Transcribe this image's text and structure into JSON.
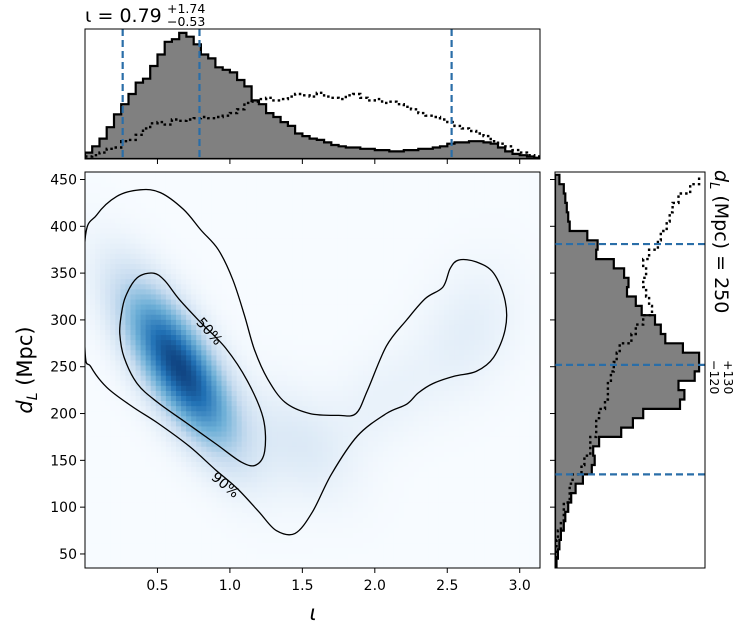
{
  "chart_data": {
    "type": "corner",
    "main": {
      "type": "heatmap",
      "xlabel": "ι",
      "ylabel": "d_L (Mpc)",
      "xlim": [
        0.0,
        3.14
      ],
      "ylim": [
        35,
        458
      ],
      "xticks": [
        0.5,
        1.0,
        1.5,
        2.0,
        2.5,
        3.0
      ],
      "xtick_labels": [
        "0.5",
        "1.0",
        "1.5",
        "2.0",
        "2.5",
        "3.0"
      ],
      "yticks": [
        50,
        100,
        150,
        200,
        250,
        300,
        350,
        400,
        450
      ],
      "ytick_labels": [
        "50",
        "100",
        "150",
        "200",
        "250",
        "300",
        "350",
        "400",
        "450"
      ],
      "colormap": "Blues",
      "density_blobs": [
        {
          "x": 0.65,
          "y": 250,
          "sx": 0.25,
          "sy": 55,
          "rho": -0.72,
          "w": 1.0
        },
        {
          "x": 1.45,
          "y": 170,
          "sx": 0.25,
          "sy": 40,
          "rho": -0.4,
          "w": 0.1
        },
        {
          "x": 2.65,
          "y": 290,
          "sx": 0.22,
          "sy": 45,
          "rho": 0.25,
          "w": 0.07
        },
        {
          "x": 2.05,
          "y": 215,
          "sx": 0.3,
          "sy": 40,
          "rho": 0.5,
          "w": 0.05
        }
      ],
      "contours": [
        {
          "label": "50%",
          "points": [
            [
              0.25,
              305
            ],
            [
              0.28,
              325
            ],
            [
              0.36,
              345
            ],
            [
              0.47,
              350
            ],
            [
              0.55,
              342
            ],
            [
              0.65,
              322
            ],
            [
              0.8,
              297
            ],
            [
              0.97,
              270
            ],
            [
              1.12,
              235
            ],
            [
              1.23,
              195
            ],
            [
              1.24,
              160
            ],
            [
              1.18,
              145
            ],
            [
              1.08,
              148
            ],
            [
              0.9,
              168
            ],
            [
              0.7,
              190
            ],
            [
              0.5,
              212
            ],
            [
              0.36,
              232
            ],
            [
              0.27,
              260
            ],
            [
              0.24,
              285
            ]
          ]
        },
        {
          "label": "90%",
          "points": [
            [
              0.0,
              385
            ],
            [
              0.08,
              412
            ],
            [
              0.22,
              432
            ],
            [
              0.38,
              439
            ],
            [
              0.52,
              436
            ],
            [
              0.68,
              418
            ],
            [
              0.8,
              396
            ],
            [
              0.92,
              375
            ],
            [
              1.02,
              343
            ],
            [
              1.1,
              305
            ],
            [
              1.17,
              268
            ],
            [
              1.26,
              237
            ],
            [
              1.38,
              212
            ],
            [
              1.55,
              200
            ],
            [
              1.75,
              198
            ],
            [
              1.87,
              200
            ],
            [
              1.95,
              225
            ],
            [
              2.08,
              272
            ],
            [
              2.22,
              300
            ],
            [
              2.35,
              323
            ],
            [
              2.47,
              335
            ],
            [
              2.52,
              355
            ],
            [
              2.58,
              364
            ],
            [
              2.7,
              362
            ],
            [
              2.82,
              350
            ],
            [
              2.9,
              320
            ],
            [
              2.9,
              290
            ],
            [
              2.82,
              260
            ],
            [
              2.7,
              245
            ],
            [
              2.55,
              240
            ],
            [
              2.4,
              232
            ],
            [
              2.3,
              222
            ],
            [
              2.22,
              210
            ],
            [
              2.08,
              200
            ],
            [
              1.88,
              176
            ],
            [
              1.7,
              135
            ],
            [
              1.57,
              95
            ],
            [
              1.45,
              72
            ],
            [
              1.32,
              75
            ],
            [
              1.2,
              95
            ],
            [
              1.05,
              120
            ],
            [
              0.9,
              140
            ],
            [
              0.72,
              165
            ],
            [
              0.5,
              190
            ],
            [
              0.32,
              208
            ],
            [
              0.15,
              228
            ],
            [
              0.04,
              250
            ],
            [
              0.0,
              268
            ]
          ]
        }
      ]
    },
    "top": {
      "type": "histogram",
      "title_prefix": "ι = ",
      "title_value": "0.79",
      "title_plus": "+1.74",
      "title_minus": "−0.53",
      "bin_start": 0.0,
      "bin_width": 0.05,
      "posterior_heights": [
        0.05,
        0.1,
        0.16,
        0.25,
        0.35,
        0.43,
        0.51,
        0.6,
        0.63,
        0.73,
        0.82,
        0.92,
        0.94,
        0.99,
        0.96,
        0.9,
        0.82,
        0.79,
        0.72,
        0.7,
        0.68,
        0.62,
        0.57,
        0.46,
        0.43,
        0.36,
        0.33,
        0.29,
        0.26,
        0.2,
        0.18,
        0.16,
        0.15,
        0.13,
        0.11,
        0.1,
        0.09,
        0.09,
        0.08,
        0.08,
        0.07,
        0.07,
        0.06,
        0.06,
        0.07,
        0.07,
        0.08,
        0.08,
        0.09,
        0.1,
        0.12,
        0.13,
        0.13,
        0.14,
        0.14,
        0.13,
        0.12,
        0.09,
        0.06,
        0.04,
        0.03,
        0.02,
        0.01
      ],
      "prior_heights": [
        0.02,
        0.03,
        0.05,
        0.08,
        0.09,
        0.14,
        0.15,
        0.19,
        0.24,
        0.28,
        0.29,
        0.27,
        0.31,
        0.3,
        0.31,
        0.32,
        0.33,
        0.32,
        0.33,
        0.34,
        0.36,
        0.39,
        0.44,
        0.45,
        0.47,
        0.48,
        0.46,
        0.47,
        0.49,
        0.51,
        0.5,
        0.49,
        0.52,
        0.49,
        0.48,
        0.47,
        0.5,
        0.51,
        0.48,
        0.46,
        0.47,
        0.44,
        0.45,
        0.43,
        0.41,
        0.39,
        0.36,
        0.34,
        0.33,
        0.31,
        0.29,
        0.26,
        0.24,
        0.22,
        0.2,
        0.18,
        0.14,
        0.12,
        0.1,
        0.07,
        0.05,
        0.03,
        0.02
      ],
      "lines": [
        0.26,
        0.79,
        2.53
      ]
    },
    "right": {
      "type": "histogram",
      "orientation": "horizontal",
      "label_prefix": "d",
      "label_sub": "L",
      "label_body": " (Mpc) = 250",
      "label_plus": "+130",
      "label_minus": "−120",
      "bin_start": 35,
      "bin_width": 10,
      "posterior_widths": [
        0.01,
        0.02,
        0.03,
        0.04,
        0.06,
        0.07,
        0.09,
        0.11,
        0.14,
        0.19,
        0.25,
        0.27,
        0.26,
        0.3,
        0.45,
        0.53,
        0.6,
        0.85,
        0.88,
        0.84,
        0.95,
        0.98,
        0.98,
        0.87,
        0.75,
        0.72,
        0.68,
        0.59,
        0.55,
        0.49,
        0.5,
        0.47,
        0.4,
        0.28,
        0.29,
        0.22,
        0.1,
        0.09,
        0.08,
        0.07,
        0.06,
        0.03
      ],
      "prior_widths": [
        0.0,
        0.01,
        0.01,
        0.02,
        0.04,
        0.06,
        0.06,
        0.1,
        0.1,
        0.12,
        0.18,
        0.2,
        0.24,
        0.24,
        0.28,
        0.28,
        0.3,
        0.34,
        0.36,
        0.36,
        0.38,
        0.4,
        0.42,
        0.44,
        0.52,
        0.55,
        0.6,
        0.66,
        0.64,
        0.62,
        0.6,
        0.62,
        0.6,
        0.64,
        0.7,
        0.72,
        0.76,
        0.78,
        0.8,
        0.84,
        0.92,
        0.98
      ],
      "lines": [
        135,
        252,
        381
      ]
    }
  }
}
